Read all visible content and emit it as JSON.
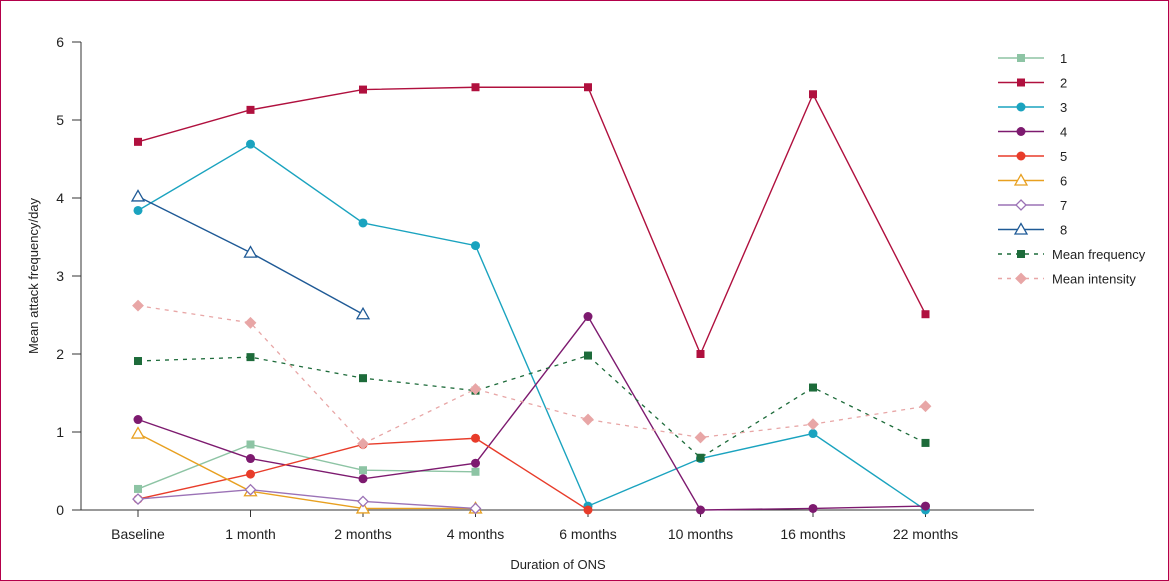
{
  "chart_data": {
    "type": "line",
    "title": "",
    "xlabel": "Duration of ONS",
    "ylabel": "Mean attack frequency/day",
    "ylim": [
      0,
      6
    ],
    "yticks": [
      "0",
      "1",
      "2",
      "3",
      "4",
      "5",
      "6"
    ],
    "categories": [
      "Baseline",
      "1 month",
      "2 months",
      "4 months",
      "6 months",
      "10 months",
      "16 months",
      "22 months"
    ],
    "grid": false,
    "legend_position": "top-right",
    "series": [
      {
        "name": "1",
        "color": "#8dc4a4",
        "marker": "square",
        "dash": false,
        "values": [
          0.27,
          0.84,
          0.51,
          0.49,
          null,
          null,
          null,
          null
        ]
      },
      {
        "name": "2",
        "color": "#b0103e",
        "marker": "square",
        "dash": false,
        "values": [
          4.72,
          5.13,
          5.39,
          5.42,
          5.42,
          2.0,
          5.33,
          2.51
        ]
      },
      {
        "name": "3",
        "color": "#1aa3bf",
        "marker": "circle",
        "dash": false,
        "values": [
          3.84,
          4.69,
          3.68,
          3.39,
          0.05,
          0.66,
          0.98,
          0.0
        ]
      },
      {
        "name": "4",
        "color": "#7d1a6f",
        "marker": "circle",
        "dash": false,
        "values": [
          1.16,
          0.66,
          0.4,
          0.6,
          2.48,
          0.0,
          0.02,
          0.05
        ]
      },
      {
        "name": "5",
        "color": "#e83c2a",
        "marker": "circle",
        "dash": false,
        "values": [
          0.14,
          0.46,
          0.84,
          0.92,
          0.0,
          null,
          null,
          null
        ]
      },
      {
        "name": "6",
        "color": "#e8a020",
        "marker": "triangle",
        "dash": false,
        "values": [
          0.98,
          0.24,
          0.02,
          0.02,
          null,
          null,
          null,
          null
        ]
      },
      {
        "name": "7",
        "color": "#9b72b6",
        "marker": "diamond",
        "dash": false,
        "values": [
          0.14,
          0.26,
          0.11,
          0.02,
          null,
          null,
          null,
          null
        ]
      },
      {
        "name": "8",
        "color": "#1f5a96",
        "marker": "triangle",
        "dash": false,
        "values": [
          4.02,
          3.3,
          2.51,
          null,
          null,
          null,
          null,
          null
        ]
      },
      {
        "name": "Mean frequency",
        "color": "#1d6b3a",
        "marker": "square",
        "dash": true,
        "values": [
          1.91,
          1.96,
          1.69,
          1.53,
          1.98,
          0.67,
          1.57,
          0.86
        ]
      },
      {
        "name": "Mean intensity",
        "color": "#e8a6a6",
        "marker": "diamond",
        "dash": true,
        "values": [
          2.62,
          2.4,
          0.85,
          1.55,
          1.16,
          0.93,
          1.1,
          1.33
        ]
      }
    ]
  }
}
